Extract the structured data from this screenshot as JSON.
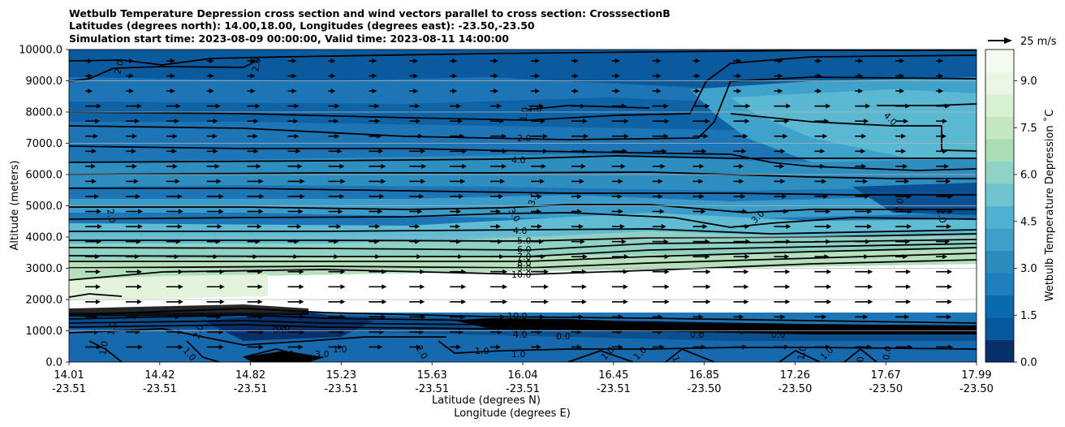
{
  "chart_data": {
    "type": "contour-cross-section",
    "title_lines": [
      "Wetbulb Temperature Depression cross section and wind vectors parallel to cross section: CrosssectionB",
      "Latitudes (degrees north): 14.00,18.00, Longitudes (degrees east): -23.50,-23.50",
      "Simulation start time: 2023-08-09 00:00:00, Valid time: 2023-08-11 14:00:00"
    ],
    "ylabel": "Altitude (meters)",
    "xlabel_lat": "Latitude (degrees N)",
    "xlabel_lon": "Longitude (degrees E)",
    "ylim": [
      0,
      10000
    ],
    "yticks": [
      "0.0",
      "1000.0",
      "2000.0",
      "3000.0",
      "4000.0",
      "5000.0",
      "6000.0",
      "7000.0",
      "8000.0",
      "9000.0",
      "10000.0"
    ],
    "xticks_lat": [
      "14.01",
      "14.42",
      "14.82",
      "15.23",
      "15.63",
      "16.04",
      "16.45",
      "16.85",
      "17.26",
      "17.67",
      "17.99"
    ],
    "xticks_lon": [
      "-23.51",
      "-23.51",
      "-23.51",
      "-23.51",
      "-23.51",
      "-23.51",
      "-23.51",
      "-23.50",
      "-23.50",
      "-23.50",
      "-23.50"
    ],
    "colorbar": {
      "label": "Wetbulb Temperature Depression ˚C",
      "range": [
        0,
        10
      ],
      "ticks": [
        "0.0",
        "1.5",
        "3.0",
        "4.5",
        "6.0",
        "7.5",
        "9.0"
      ],
      "tick_values": [
        0,
        1.5,
        3.0,
        4.5,
        6.0,
        7.5,
        9.0
      ],
      "colors": [
        "#08306b",
        "#08589e",
        "#0a6aae",
        "#1f7fbc",
        "#2b8cbe",
        "#3f9fcb",
        "#4eb3d3",
        "#6fc4cf",
        "#8fd3c6",
        "#a8ddb5",
        "#c3e8bf",
        "#d8f0d2",
        "#e8f6e3",
        "#f3fbef"
      ]
    },
    "wind_key": {
      "label": "25 m/s",
      "speed": 25
    },
    "contour_labels": [
      "2.0",
      "2.0",
      "2.0",
      "1.0",
      "1.0",
      "2.0",
      "4.0",
      "4.0",
      "3.0",
      "3.0",
      "3.0",
      "2.0",
      "1.0",
      "2.0",
      "4.0",
      "5.0",
      "6.0",
      "7.0",
      "8.0",
      "9.0",
      "10.0",
      "10.0",
      "9.0",
      "8.0",
      "4.0",
      "0.0",
      "0.0",
      "0.0",
      "0.0",
      "1.0",
      "1.0",
      "1.0",
      "1.0",
      "2.0",
      "2.0",
      "1.0",
      "1.0",
      "1.0",
      "1.0",
      "1.0",
      "0.0",
      "0.0",
      "1.0",
      "0.0",
      "3.0",
      "3.0"
    ]
  }
}
